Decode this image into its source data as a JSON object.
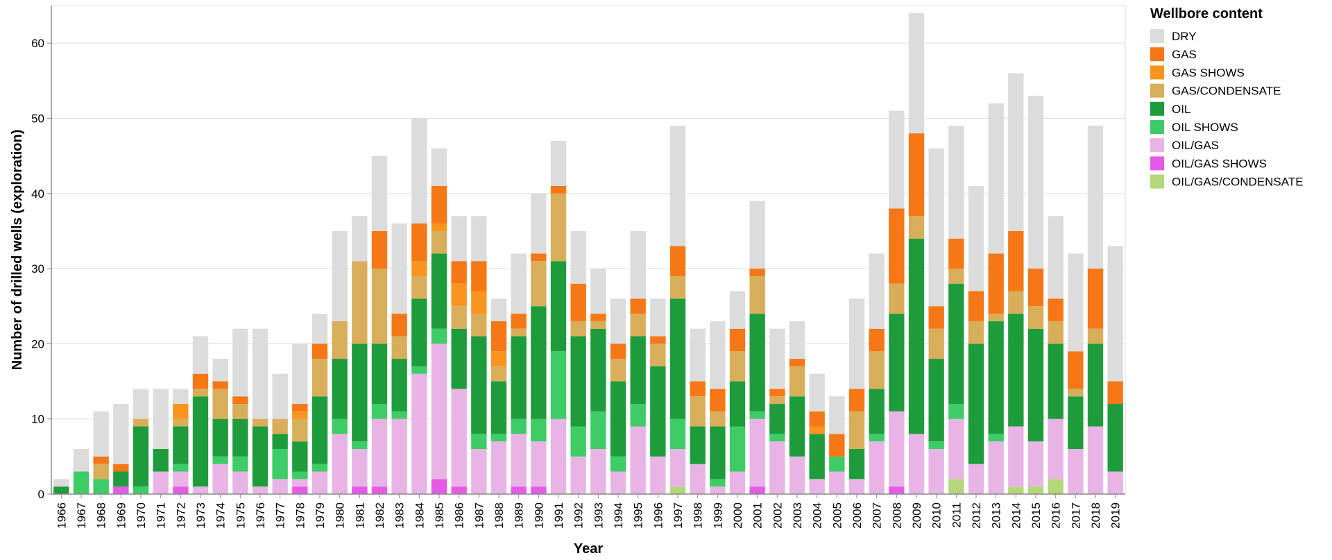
{
  "chart_data": {
    "type": "bar",
    "stacked": true,
    "xlabel": "Year",
    "ylabel": "Number of drilled wells (exploration)",
    "ylim": [
      0,
      65
    ],
    "yticks": [
      0,
      10,
      20,
      30,
      40,
      50,
      60
    ],
    "grid": true,
    "legend_title": "Wellbore content",
    "legend_position": "right",
    "categories": [
      "1966",
      "1967",
      "1968",
      "1969",
      "1970",
      "1971",
      "1972",
      "1973",
      "1974",
      "1975",
      "1976",
      "1977",
      "1978",
      "1979",
      "1980",
      "1981",
      "1982",
      "1983",
      "1984",
      "1985",
      "1986",
      "1987",
      "1988",
      "1989",
      "1990",
      "1991",
      "1992",
      "1993",
      "1994",
      "1995",
      "1996",
      "1997",
      "1998",
      "1999",
      "2000",
      "2001",
      "2002",
      "2003",
      "2004",
      "2005",
      "2006",
      "2007",
      "2008",
      "2009",
      "2010",
      "2011",
      "2012",
      "2013",
      "2014",
      "2015",
      "2016",
      "2017",
      "2018",
      "2019"
    ],
    "series": [
      {
        "name": "OIL/GAS/CONDENSATE",
        "color": "#b5d67a",
        "values": [
          0,
          0,
          0,
          0,
          0,
          0,
          0,
          0,
          0,
          0,
          0,
          0,
          0,
          0,
          0,
          0,
          0,
          0,
          0,
          0,
          0,
          0,
          0,
          0,
          0,
          0,
          0,
          0,
          0,
          0,
          0,
          1,
          0,
          0,
          0,
          0,
          0,
          0,
          0,
          0,
          0,
          0,
          0,
          0,
          0,
          2,
          0,
          0,
          1,
          1,
          2,
          0,
          0,
          0
        ]
      },
      {
        "name": "OIL/GAS SHOWS",
        "color": "#e75ae8",
        "values": [
          0,
          0,
          0,
          1,
          0,
          0,
          1,
          0,
          0,
          0,
          0,
          0,
          1,
          0,
          0,
          1,
          1,
          0,
          0,
          2,
          1,
          0,
          0,
          1,
          1,
          0,
          0,
          0,
          0,
          0,
          0,
          0,
          0,
          0,
          0,
          1,
          0,
          0,
          0,
          0,
          0,
          0,
          1,
          0,
          0,
          0,
          0,
          0,
          0,
          0,
          0,
          0,
          0,
          0
        ]
      },
      {
        "name": "OIL/GAS",
        "color": "#e8b4e6",
        "values": [
          0,
          0,
          0,
          0,
          0,
          3,
          2,
          1,
          4,
          3,
          1,
          2,
          1,
          3,
          8,
          5,
          9,
          10,
          16,
          18,
          13,
          6,
          7,
          7,
          6,
          10,
          5,
          6,
          3,
          9,
          5,
          5,
          4,
          1,
          3,
          9,
          7,
          5,
          2,
          3,
          2,
          7,
          10,
          8,
          6,
          8,
          4,
          7,
          8,
          6,
          8,
          6,
          9,
          3
        ]
      },
      {
        "name": "OIL SHOWS",
        "color": "#3dcc66",
        "values": [
          0,
          3,
          2,
          0,
          1,
          0,
          1,
          0,
          1,
          2,
          0,
          4,
          1,
          1,
          2,
          1,
          2,
          1,
          1,
          2,
          0,
          2,
          1,
          2,
          3,
          9,
          4,
          5,
          2,
          3,
          0,
          4,
          0,
          1,
          6,
          1,
          1,
          0,
          0,
          2,
          0,
          1,
          0,
          0,
          1,
          2,
          0,
          1,
          0,
          0,
          0,
          0,
          0,
          0
        ]
      },
      {
        "name": "OIL",
        "color": "#1e9c3c",
        "values": [
          1,
          0,
          0,
          2,
          8,
          3,
          5,
          12,
          5,
          5,
          8,
          2,
          4,
          9,
          8,
          13,
          8,
          7,
          9,
          10,
          8,
          13,
          7,
          11,
          15,
          12,
          12,
          11,
          10,
          9,
          12,
          16,
          5,
          7,
          6,
          13,
          4,
          8,
          6,
          0,
          4,
          6,
          13,
          26,
          11,
          16,
          16,
          15,
          15,
          15,
          10,
          7,
          11,
          9
        ]
      },
      {
        "name": "GAS/CONDENSATE",
        "color": "#d9ae5b",
        "values": [
          0,
          0,
          2,
          0,
          1,
          0,
          1,
          1,
          4,
          2,
          1,
          2,
          3,
          5,
          5,
          11,
          10,
          3,
          3,
          3,
          3,
          3,
          2,
          1,
          6,
          9,
          2,
          1,
          3,
          3,
          3,
          3,
          4,
          2,
          4,
          5,
          1,
          4,
          0,
          0,
          5,
          5,
          4,
          3,
          4,
          2,
          3,
          1,
          3,
          3,
          3,
          1,
          2,
          0
        ]
      },
      {
        "name": "GAS SHOWS",
        "color": "#f9951e",
        "values": [
          0,
          0,
          0,
          0,
          0,
          0,
          2,
          0,
          0,
          0,
          0,
          0,
          1,
          0,
          0,
          0,
          0,
          0,
          2,
          1,
          3,
          3,
          2,
          0,
          0,
          0,
          0,
          0,
          0,
          0,
          0,
          0,
          0,
          0,
          0,
          0,
          0,
          0,
          1,
          0,
          0,
          0,
          0,
          0,
          0,
          0,
          0,
          0,
          0,
          0,
          0,
          0,
          0,
          0
        ]
      },
      {
        "name": "GAS",
        "color": "#f57716",
        "values": [
          0,
          0,
          1,
          1,
          0,
          0,
          0,
          2,
          1,
          1,
          0,
          0,
          1,
          2,
          0,
          0,
          5,
          3,
          5,
          5,
          3,
          4,
          4,
          2,
          1,
          1,
          5,
          1,
          2,
          2,
          1,
          4,
          2,
          3,
          3,
          1,
          1,
          1,
          2,
          3,
          3,
          3,
          10,
          11,
          3,
          4,
          4,
          8,
          8,
          5,
          3,
          5,
          8,
          3
        ]
      },
      {
        "name": "DRY",
        "color": "#dcdcdc",
        "values": [
          1,
          3,
          6,
          8,
          4,
          8,
          2,
          5,
          3,
          9,
          12,
          6,
          8,
          4,
          12,
          6,
          10,
          12,
          14,
          5,
          6,
          6,
          3,
          8,
          8,
          6,
          7,
          6,
          6,
          9,
          5,
          16,
          7,
          9,
          5,
          9,
          8,
          5,
          5,
          5,
          12,
          10,
          13,
          16,
          21,
          15,
          14,
          20,
          21,
          23,
          11,
          13,
          19,
          18
        ]
      }
    ],
    "legend_order": [
      "DRY",
      "GAS",
      "GAS SHOWS",
      "GAS/CONDENSATE",
      "OIL",
      "OIL SHOWS",
      "OIL/GAS",
      "OIL/GAS SHOWS",
      "OIL/GAS/CONDENSATE"
    ]
  }
}
